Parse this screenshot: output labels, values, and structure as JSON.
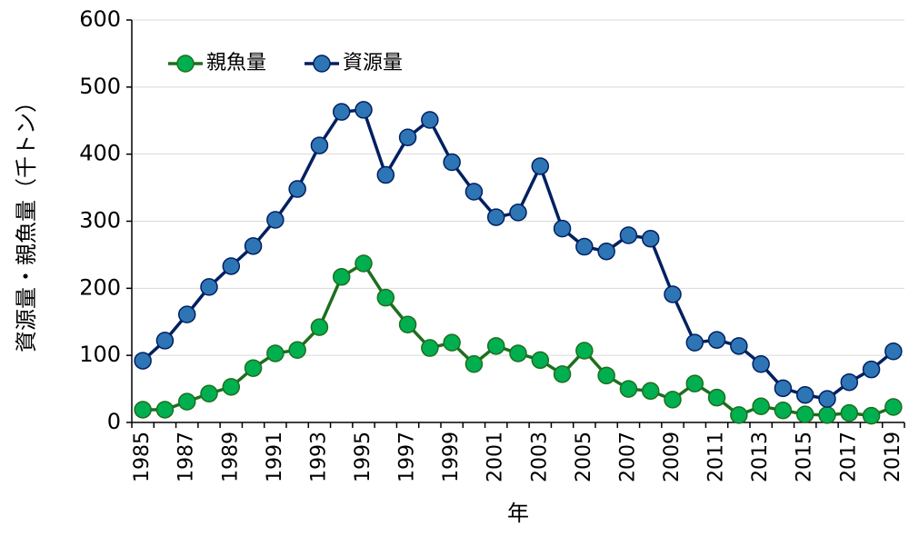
{
  "chart_data": {
    "type": "line",
    "xlabel": "年",
    "ylabel": "資源量・親魚量（千トン）",
    "categories": [
      "1985",
      null,
      "1987",
      null,
      "1989",
      null,
      "1991",
      null,
      "1993",
      null,
      "1995",
      null,
      "1997",
      null,
      "1999",
      null,
      "2001",
      null,
      "2003",
      null,
      "2005",
      null,
      "2007",
      null,
      "2009",
      null,
      "2011",
      null,
      "2013",
      null,
      "2015",
      null,
      "2017",
      null,
      "2019"
    ],
    "series": [
      {
        "name": "親魚量",
        "color": "#1e6e1e",
        "marker_color": "#00b050",
        "values": [
          19,
          19,
          31,
          43,
          53,
          81,
          103,
          108,
          142,
          217,
          237,
          186,
          146,
          111,
          119,
          87,
          114,
          103,
          93,
          72,
          107,
          70,
          50,
          47,
          34,
          58,
          37,
          11,
          24,
          18,
          12,
          11,
          14,
          10,
          23
        ]
      },
      {
        "name": "資源量",
        "color": "#002060",
        "marker_color": "#2e75b6",
        "values": [
          92,
          122,
          161,
          202,
          233,
          263,
          302,
          348,
          413,
          463,
          466,
          369,
          425,
          451,
          388,
          344,
          306,
          313,
          382,
          289,
          262,
          255,
          279,
          274,
          191,
          119,
          123,
          114,
          87,
          51,
          41,
          35,
          60,
          79,
          106
        ]
      }
    ],
    "ylim": [
      0,
      600
    ],
    "yticks": [
      0,
      100,
      200,
      300,
      400,
      500,
      600
    ],
    "grid": true,
    "legend": "top-left"
  }
}
